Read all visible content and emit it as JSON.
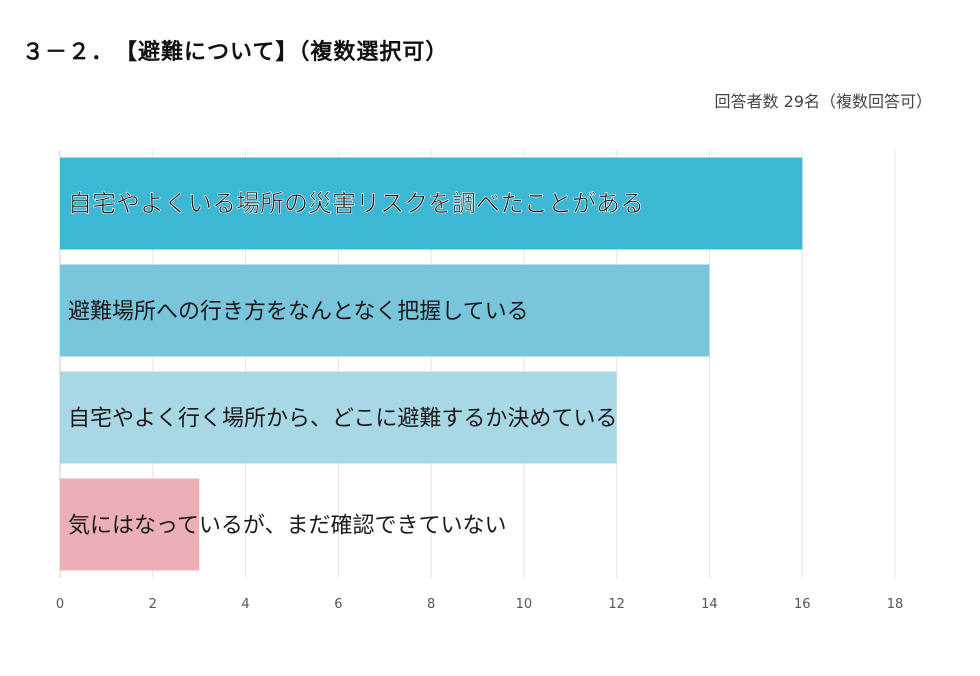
{
  "title": "３－２．　【避難について】（複数選択可）",
  "note": "回答者数 29名（複数回答可）",
  "chart_data": {
    "type": "bar",
    "orientation": "horizontal",
    "categories": [
      "自宅やよくいる場所の災害リスクを調べたことがある",
      "避難場所への行き方をなんとなく把握している",
      "自宅やよく行く場所から、どこに避難するか決めている",
      "気にはなっているが、まだ確認できていない"
    ],
    "values": [
      16,
      14,
      12,
      3
    ],
    "colors": [
      "#3db8d4",
      "#79c6dc",
      "#a8d7e6",
      "#ecb0b4"
    ],
    "xlim": [
      0,
      18
    ],
    "xticks": [
      0,
      2,
      4,
      6,
      8,
      10,
      12,
      14,
      16,
      18
    ],
    "grid": true,
    "legend": "none"
  }
}
